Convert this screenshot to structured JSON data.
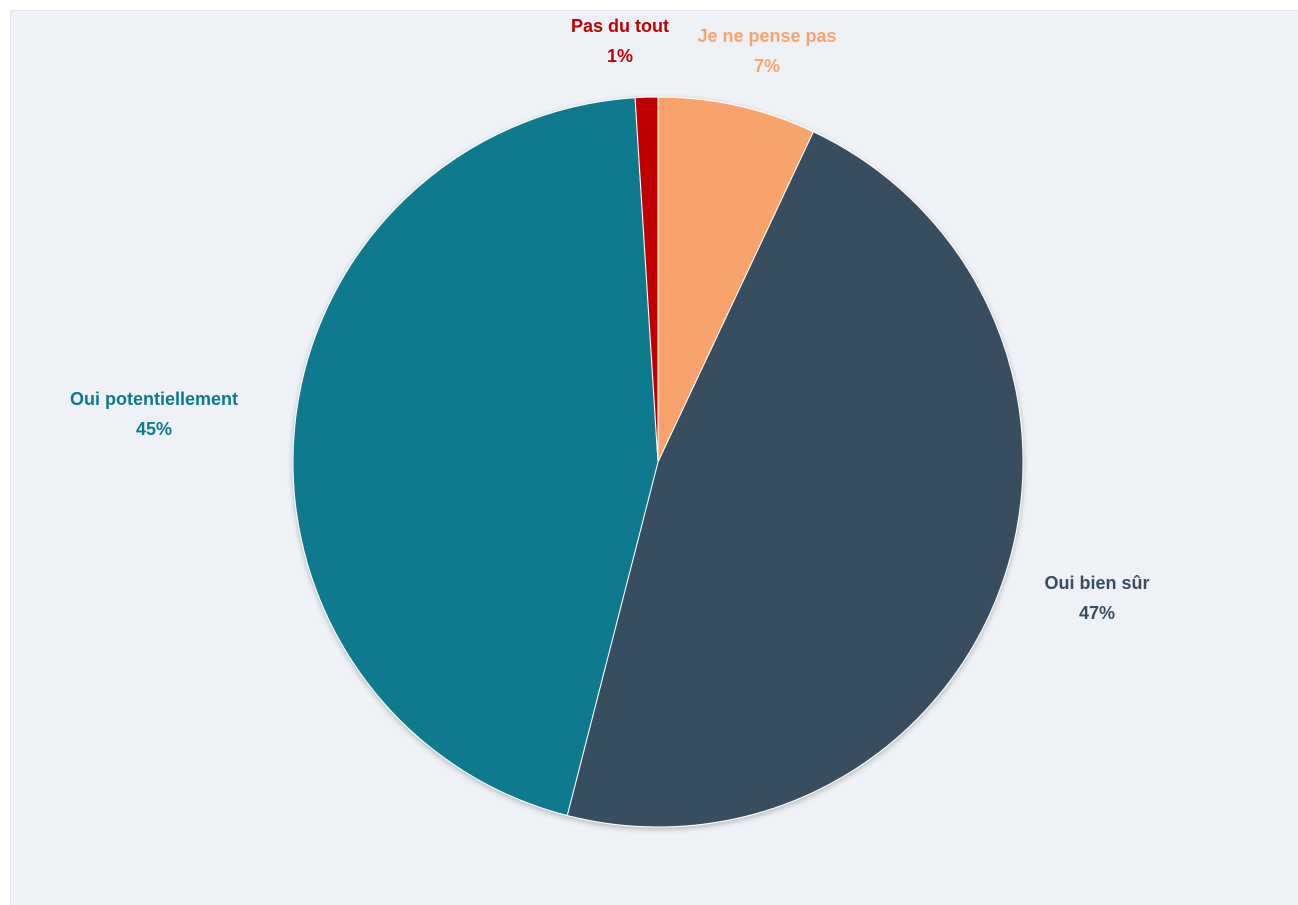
{
  "chart_data": {
    "type": "pie",
    "title": "",
    "slices": [
      {
        "label": "Je ne pense pas",
        "value": 7,
        "display": "7%",
        "color": "#f9a36c"
      },
      {
        "label": "Oui bien sûr",
        "value": 47,
        "display": "47%",
        "color": "#384d61"
      },
      {
        "label": "Oui potentiellement",
        "value": 45,
        "display": "45%",
        "color": "#0a7a8d"
      },
      {
        "label": "Pas du tout",
        "value": 1,
        "display": "1%",
        "color": "#c00000"
      }
    ],
    "start": "12 o'clock, clockwise",
    "legend": "none",
    "labels": "outside slices, category name and percentage"
  }
}
